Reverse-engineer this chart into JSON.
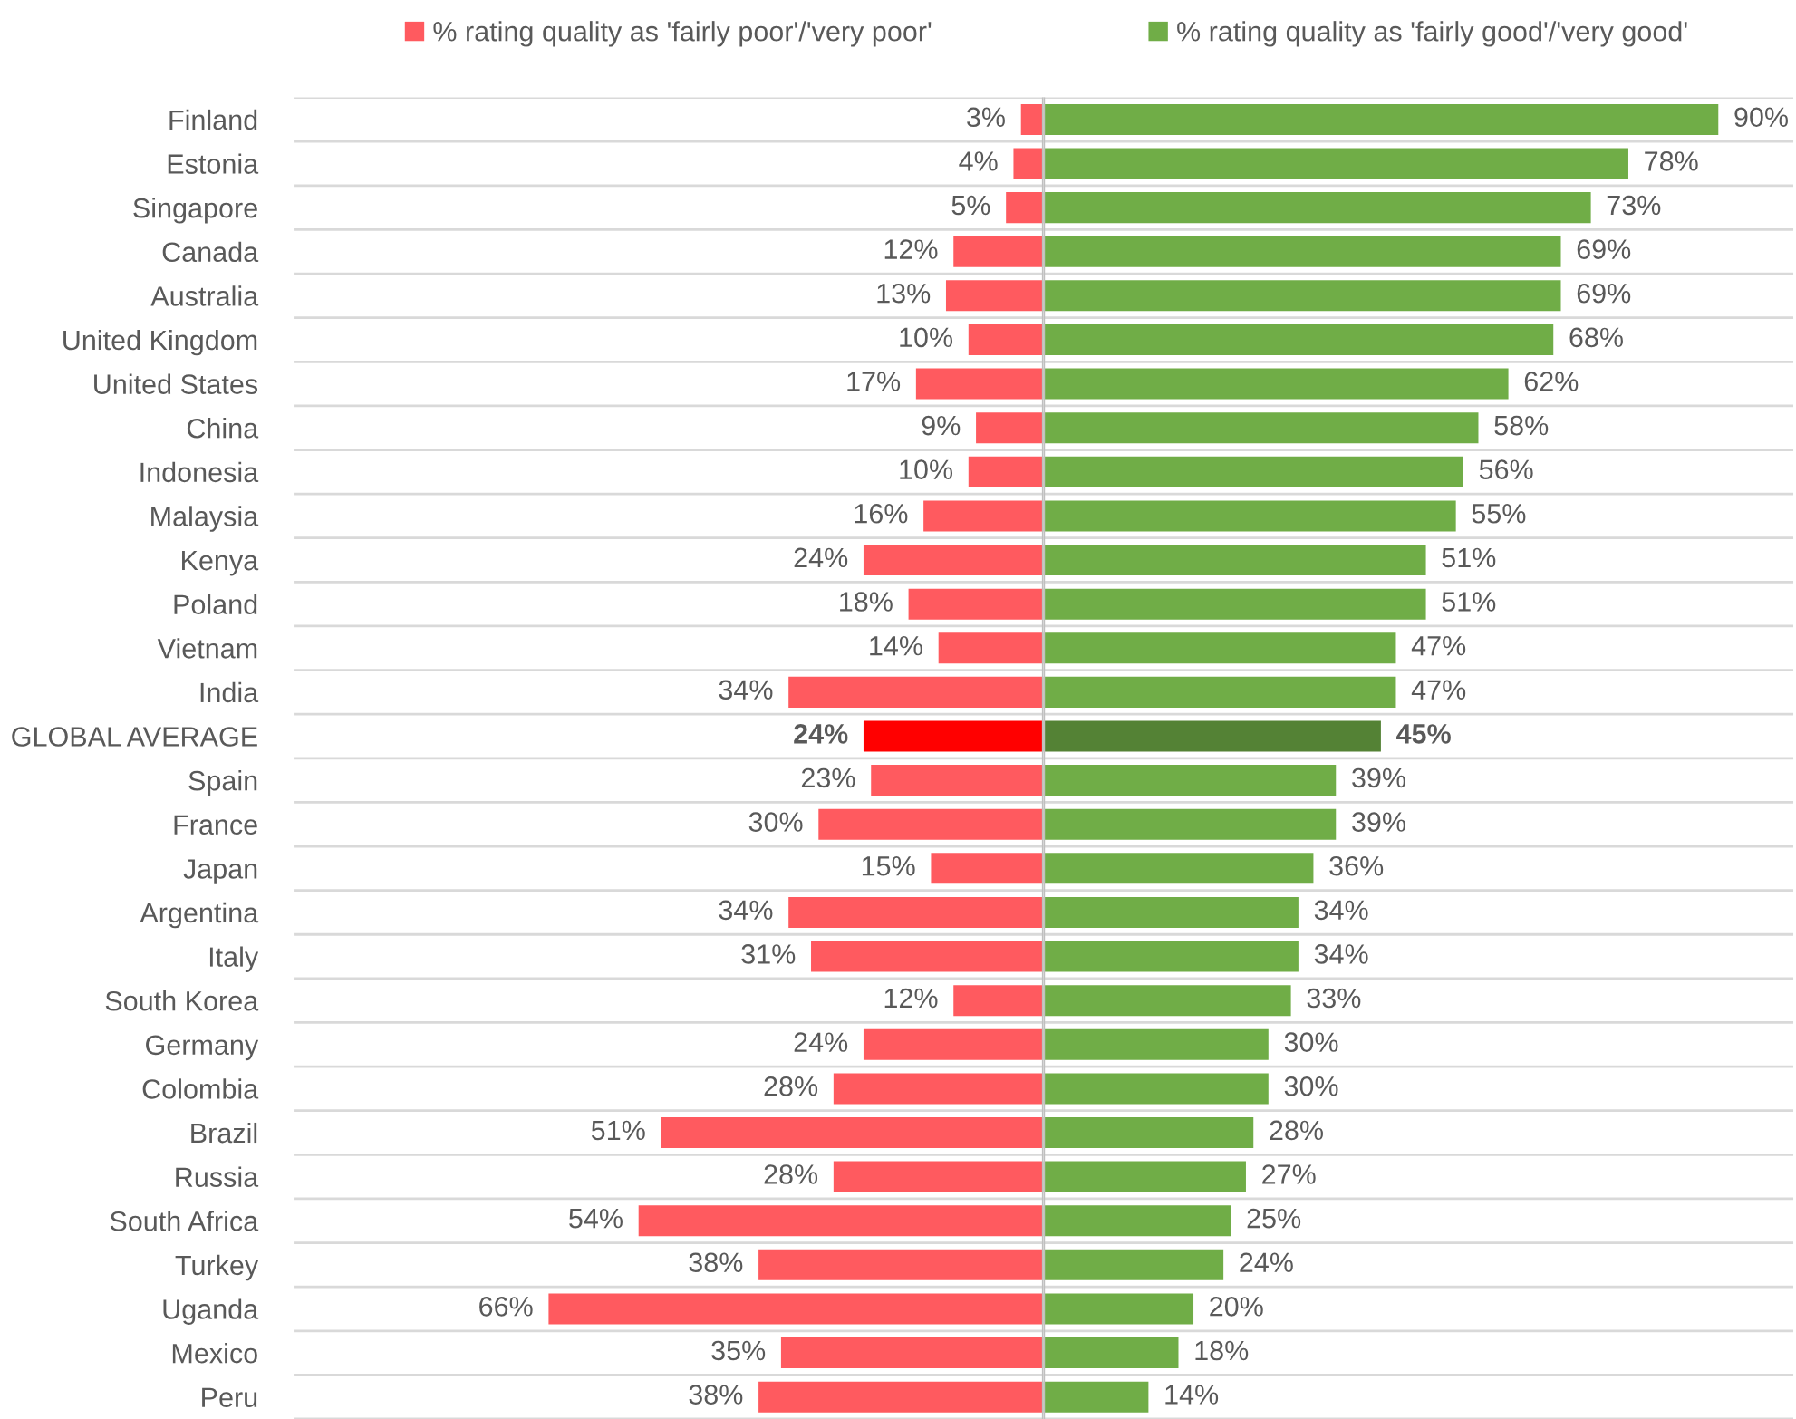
{
  "chart_data": [
    {
      "type": "bar",
      "orientation": "horizontal",
      "categories": [
        "Finland",
        "Estonia",
        "Singapore",
        "Canada",
        "Australia",
        "United Kingdom",
        "United States",
        "China",
        "Indonesia",
        "Malaysia",
        "Kenya",
        "Poland",
        "Vietnam",
        "India",
        "GLOBAL AVERAGE",
        "Spain",
        "France",
        "Japan",
        "Argentina",
        "Italy",
        "South Korea",
        "Germany",
        "Colombia",
        "Brazil",
        "Russia",
        "South Africa",
        "Turkey",
        "Uganda",
        "Mexico",
        "Peru"
      ],
      "series": [
        {
          "name": "% rating quality as 'fairly poor'/'very poor'",
          "color": "#ff5a5f",
          "colors": [
            "#ff5a5f",
            "#ff5a5f",
            "#ff5a5f",
            "#ff5a5f",
            "#ff5a5f",
            "#ff5a5f",
            "#ff5a5f",
            "#ff5a5f",
            "#ff5a5f",
            "#ff5a5f",
            "#ff5a5f",
            "#ff5a5f",
            "#ff5a5f",
            "#ff5a5f",
            "#ff0000",
            "#ff5a5f",
            "#ff5a5f",
            "#ff5a5f",
            "#ff5a5f",
            "#ff5a5f",
            "#ff5a5f",
            "#ff5a5f",
            "#ff5a5f",
            "#ff5a5f",
            "#ff5a5f",
            "#ff5a5f",
            "#ff5a5f",
            "#ff5a5f",
            "#ff5a5f",
            "#ff5a5f"
          ],
          "values": [
            3,
            4,
            5,
            12,
            13,
            10,
            17,
            9,
            10,
            16,
            24,
            18,
            14,
            34,
            24,
            23,
            30,
            15,
            34,
            31,
            12,
            24,
            28,
            51,
            28,
            54,
            38,
            66,
            35,
            38
          ],
          "value_labels": [
            "3%",
            "4%",
            "5%",
            "12%",
            "13%",
            "10%",
            "17%",
            "9%",
            "10%",
            "16%",
            "24%",
            "18%",
            "14%",
            "34%",
            "24%",
            "23%",
            "30%",
            "15%",
            "34%",
            "31%",
            "12%",
            "24%",
            "28%",
            "51%",
            "28%",
            "54%",
            "38%",
            "66%",
            "35%",
            "38%"
          ]
        }
      ],
      "xlim": [
        100,
        0
      ],
      "tick_labels": "y",
      "grid": "y",
      "legend": "top"
    },
    {
      "type": "bar",
      "orientation": "horizontal",
      "categories": [
        null,
        null,
        null,
        null,
        null,
        null,
        null,
        null,
        null,
        null,
        null,
        null,
        null,
        null,
        null,
        null,
        null,
        null,
        null,
        null,
        null,
        null,
        null,
        null,
        null,
        null,
        null,
        null,
        null,
        null
      ],
      "series": [
        {
          "name": "% rating quality as 'fairly good'/'very good'",
          "color": "#70ad47",
          "colors": [
            "#70ad47",
            "#70ad47",
            "#70ad47",
            "#70ad47",
            "#70ad47",
            "#70ad47",
            "#70ad47",
            "#70ad47",
            "#70ad47",
            "#70ad47",
            "#70ad47",
            "#70ad47",
            "#70ad47",
            "#70ad47",
            "#548235",
            "#70ad47",
            "#70ad47",
            "#70ad47",
            "#70ad47",
            "#70ad47",
            "#70ad47",
            "#70ad47",
            "#70ad47",
            "#70ad47",
            "#70ad47",
            "#70ad47",
            "#70ad47",
            "#70ad47",
            "#70ad47",
            "#70ad47"
          ],
          "values": [
            90,
            78,
            73,
            69,
            69,
            68,
            62,
            58,
            56,
            55,
            51,
            51,
            47,
            47,
            45,
            39,
            39,
            36,
            34,
            34,
            33,
            30,
            30,
            28,
            27,
            25,
            24,
            20,
            18,
            14
          ],
          "value_labels": [
            "90%",
            "78%",
            "73%",
            "69%",
            "69%",
            "68%",
            "62%",
            "58%",
            "56%",
            "55%",
            "51%",
            "51%",
            "47%",
            "47%",
            "45%",
            "39%",
            "39%",
            "36%",
            "34%",
            "34%",
            "33%",
            "30%",
            "30%",
            "28%",
            "27%",
            "25%",
            "24%",
            "20%",
            "18%",
            "14%"
          ]
        }
      ],
      "xlim": [
        0,
        100
      ],
      "grid": "y",
      "legend": "top"
    }
  ]
}
